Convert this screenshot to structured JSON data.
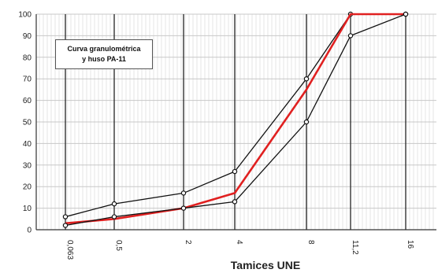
{
  "chart_data": {
    "type": "line",
    "annotation_lines": [
      "Curva granulométrica",
      "y huso PA-11"
    ],
    "xlabel": "Tamices UNE",
    "categories": [
      "0,063",
      "0,5",
      "2",
      "4",
      "8",
      "11,2",
      "16"
    ],
    "ylim": [
      0,
      100
    ],
    "yticks": [
      0,
      10,
      20,
      30,
      40,
      50,
      60,
      70,
      80,
      90,
      100
    ],
    "grid": true,
    "series": [
      {
        "values": [
          6,
          12,
          17,
          27,
          70,
          100,
          100
        ],
        "color": "#111111",
        "markers": true
      },
      {
        "values": [
          3,
          5,
          10,
          17,
          65,
          100,
          100
        ],
        "color": "#e02020",
        "markers": false
      },
      {
        "values": [
          2,
          6,
          10,
          13,
          50,
          90,
          100
        ],
        "color": "#111111",
        "markers": true
      }
    ]
  }
}
